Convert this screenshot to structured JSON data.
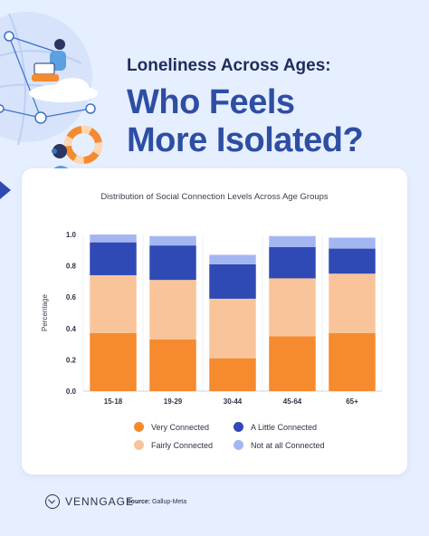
{
  "header": {
    "subtitle": "Loneliness Across Ages:",
    "headline_line1": "Who Feels",
    "headline_line2": "More Isolated?"
  },
  "colors": {
    "background": "#e6efff",
    "very_connected": "#f58a2f",
    "fairly_connected": "#f9c49a",
    "a_little_connected": "#2f49b5",
    "not_at_all_connected": "#a4b6f2",
    "headline": "#2e4ea3"
  },
  "chart_data": {
    "type": "bar",
    "stacked": true,
    "title": "Distribution of Social Connection Levels Across Age Groups",
    "xlabel": "",
    "ylabel": "Percentage",
    "ylim": [
      0,
      1.0
    ],
    "yticks": [
      "0.0",
      "0.2",
      "0.4",
      "0.6",
      "0.8",
      "1.0"
    ],
    "categories": [
      "15-18",
      "19-29",
      "30-44",
      "45-64",
      "65+"
    ],
    "series": [
      {
        "name": "Very Connected",
        "color": "#f58a2f",
        "values": [
          0.37,
          0.33,
          0.21,
          0.35,
          0.37
        ]
      },
      {
        "name": "Fairly Connected",
        "color": "#f9c49a",
        "values": [
          0.37,
          0.38,
          0.38,
          0.37,
          0.38
        ]
      },
      {
        "name": "A Little Connected",
        "color": "#2f49b5",
        "values": [
          0.21,
          0.22,
          0.22,
          0.2,
          0.16
        ]
      },
      {
        "name": "Not at all Connected",
        "color": "#a4b6f2",
        "values": [
          0.05,
          0.06,
          0.06,
          0.07,
          0.07
        ]
      }
    ],
    "grid": false,
    "legend_placement": "bottom"
  },
  "legend": {
    "items": [
      {
        "label": "Very Connected",
        "color": "#f58a2f"
      },
      {
        "label": "A Little Connected",
        "color": "#2f49b5"
      },
      {
        "label": "Fairly Connected",
        "color": "#f9c49a"
      },
      {
        "label": "Not at all Connected",
        "color": "#a4b6f2"
      }
    ]
  },
  "footer": {
    "brand": "VENNGAGE",
    "source_label": "Source:",
    "source_value": "Gallup-Meta"
  }
}
